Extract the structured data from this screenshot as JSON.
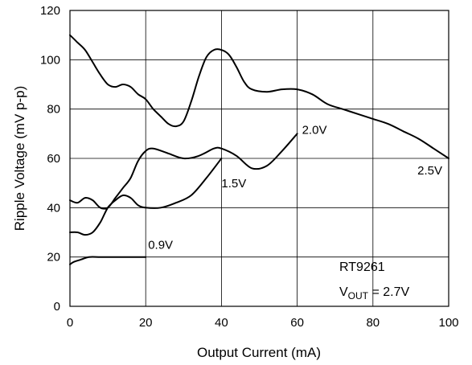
{
  "chart_data": {
    "type": "line",
    "xlabel": "Output Current (mA)",
    "ylabel": "Ripple Voltage (mV p-p)",
    "xlim": [
      0,
      100
    ],
    "ylim": [
      0,
      120
    ],
    "xticks": [
      0,
      20,
      40,
      60,
      80,
      100
    ],
    "yticks": [
      0,
      20,
      40,
      60,
      80,
      100,
      120
    ],
    "grid": true,
    "series": [
      {
        "name": "0.9V",
        "x": [
          0,
          1,
          3,
          5,
          8,
          12,
          16,
          20
        ],
        "y": [
          17,
          18,
          19,
          20,
          20,
          20,
          20,
          20
        ]
      },
      {
        "name": "1.5V",
        "x": [
          0,
          2,
          4,
          6,
          8,
          10,
          12,
          14,
          16,
          18,
          20,
          24,
          28,
          32,
          36,
          40
        ],
        "y": [
          30,
          30,
          29,
          30,
          34,
          40,
          43,
          45,
          44,
          41,
          40,
          40,
          42,
          45,
          52,
          60
        ]
      },
      {
        "name": "2.0V",
        "x": [
          0,
          2,
          4,
          6,
          8,
          10,
          12,
          14,
          16,
          18,
          20,
          22,
          26,
          30,
          34,
          38,
          40,
          44,
          48,
          52,
          56,
          60
        ],
        "y": [
          43,
          42,
          44,
          43,
          40,
          40,
          44,
          48,
          52,
          59,
          63,
          64,
          62,
          60,
          61,
          64,
          64,
          61,
          56,
          57,
          63,
          70
        ]
      },
      {
        "name": "2.5V",
        "x": [
          0,
          2,
          4,
          6,
          8,
          10,
          12,
          14,
          16,
          18,
          20,
          22,
          24,
          26,
          28,
          30,
          32,
          34,
          36,
          38,
          40,
          42,
          44,
          46,
          48,
          52,
          56,
          60,
          64,
          68,
          72,
          76,
          80,
          84,
          88,
          92,
          96,
          100
        ],
        "y": [
          110,
          107,
          104,
          99,
          94,
          90,
          89,
          90,
          89,
          86,
          84,
          80,
          77,
          74,
          73,
          75,
          83,
          93,
          101,
          104,
          104,
          102,
          97,
          91,
          88,
          87,
          88,
          88,
          86,
          82,
          80,
          78,
          76,
          74,
          71,
          68,
          64,
          60
        ]
      }
    ],
    "annotation": {
      "model": "RT9261",
      "vout_main": "V",
      "vout_sub": "OUT",
      "vout_value": " = 2.7V"
    }
  }
}
